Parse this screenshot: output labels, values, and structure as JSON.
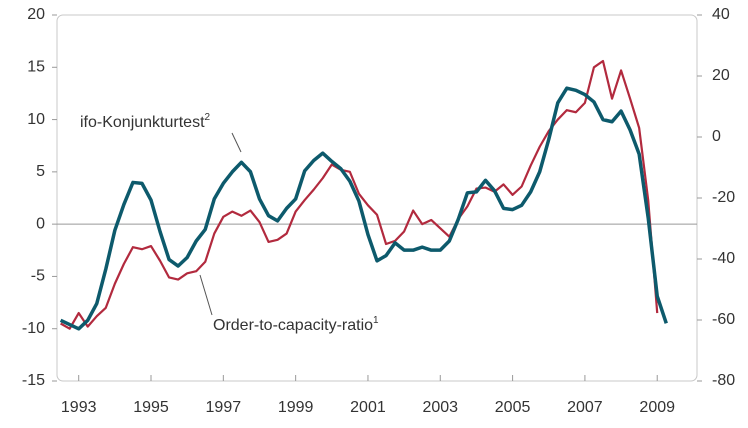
{
  "chart_data": {
    "type": "line",
    "xlim": [
      1992.4,
      2010.1
    ],
    "xticks": [
      1993,
      1995,
      1997,
      1999,
      2001,
      2003,
      2005,
      2007,
      2009
    ],
    "ylim": [
      -15,
      20
    ],
    "yticks": [
      -15,
      -10,
      -5,
      0,
      5,
      10,
      15,
      20
    ],
    "y2lim": [
      -80,
      40
    ],
    "y2ticks": [
      -80,
      -60,
      -40,
      -20,
      0,
      20,
      40
    ],
    "zero_line": true,
    "series": [
      {
        "name": "Order-to-capacity-ratio",
        "footnote": "1",
        "color": "#b22a3e",
        "x": [
          1992.5,
          1992.75,
          1993,
          1993.25,
          1993.5,
          1993.75,
          1994,
          1994.25,
          1994.5,
          1994.75,
          1995,
          1995.25,
          1995.5,
          1995.75,
          1996,
          1996.25,
          1996.5,
          1996.75,
          1997,
          1997.25,
          1997.5,
          1997.75,
          1998,
          1998.25,
          1998.5,
          1998.75,
          1999,
          1999.25,
          1999.5,
          1999.75,
          2000,
          2000.25,
          2000.5,
          2000.75,
          2001,
          2001.25,
          2001.5,
          2001.75,
          2002,
          2002.25,
          2002.5,
          2002.75,
          2003,
          2003.25,
          2003.5,
          2003.75,
          2004,
          2004.25,
          2004.5,
          2004.75,
          2005,
          2005.25,
          2005.5,
          2005.75,
          2006,
          2006.25,
          2006.5,
          2006.75,
          2007,
          2007.25,
          2007.5,
          2007.75,
          2008,
          2008.25,
          2008.5,
          2008.75,
          2009
        ],
        "values": [
          -9.5,
          -10,
          -8.5,
          -9.8,
          -8.8,
          -8,
          -5.7,
          -3.8,
          -2.2,
          -2.4,
          -2.1,
          -3.5,
          -5.1,
          -5.3,
          -4.7,
          -4.5,
          -3.6,
          -0.9,
          0.7,
          1.2,
          0.8,
          1.3,
          0.2,
          -1.7,
          -1.5,
          -0.9,
          1.2,
          2.3,
          3.3,
          4.4,
          5.7,
          5.2,
          5,
          2.9,
          1.8,
          0.9,
          -1.9,
          -1.6,
          -0.7,
          1.3,
          0,
          0.4,
          -0.4,
          -1.2,
          0.5,
          1.7,
          3.4,
          3.5,
          3.1,
          3.8,
          2.8,
          3.6,
          5.6,
          7.4,
          8.9,
          10,
          10.9,
          10.7,
          11.6,
          15,
          15.6,
          12,
          14.7,
          12,
          9.2,
          2.3,
          -8.5
        ]
      },
      {
        "name": "ifo-Konjunkturtest",
        "footnote": "2",
        "color": "#0d5a6c",
        "axis": "y2",
        "x": [
          1992.5,
          1992.75,
          1993,
          1993.25,
          1993.5,
          1993.75,
          1994,
          1994.25,
          1994.5,
          1994.75,
          1995,
          1995.25,
          1995.5,
          1995.75,
          1996,
          1996.25,
          1996.5,
          1996.75,
          1997,
          1997.25,
          1997.5,
          1997.75,
          1998,
          1998.25,
          1998.5,
          1998.75,
          1999,
          1999.25,
          1999.5,
          1999.75,
          2000,
          2000.25,
          2000.5,
          2000.75,
          2001,
          2001.25,
          2001.5,
          2001.75,
          2002,
          2002.25,
          2002.5,
          2002.75,
          2003,
          2003.25,
          2003.5,
          2003.75,
          2004,
          2004.25,
          2004.5,
          2004.75,
          2005,
          2005.25,
          2005.5,
          2005.75,
          2006,
          2006.25,
          2006.5,
          2006.75,
          2007,
          2007.25,
          2007.5,
          2007.75,
          2008,
          2008.25,
          2008.5,
          2008.75,
          2009,
          2009.25
        ],
        "values": [
          -60.1,
          -61.5,
          -62.9,
          -60.1,
          -54.6,
          -43.3,
          -30.6,
          -22.1,
          -14.9,
          -15.2,
          -20.7,
          -31,
          -40.2,
          -42.3,
          -39.5,
          -34.1,
          -30.3,
          -20.3,
          -15.2,
          -11.4,
          -8.3,
          -11.4,
          -20.3,
          -25.8,
          -27.5,
          -23.4,
          -20.3,
          -11.1,
          -7.7,
          -5.3,
          -8,
          -10.4,
          -14.5,
          -21,
          -32,
          -40.6,
          -38.9,
          -34.7,
          -37.1,
          -37.1,
          -36.1,
          -37.1,
          -37.1,
          -34.1,
          -26.9,
          -18.3,
          -18,
          -14.2,
          -17.6,
          -23.4,
          -23.8,
          -22.4,
          -18,
          -11.4,
          -0.8,
          11.2,
          16,
          15.3,
          13.9,
          11.5,
          5.7,
          5,
          8.5,
          2.3,
          -5.6,
          -26.5,
          -52.2,
          -61.1
        ]
      }
    ]
  }
}
